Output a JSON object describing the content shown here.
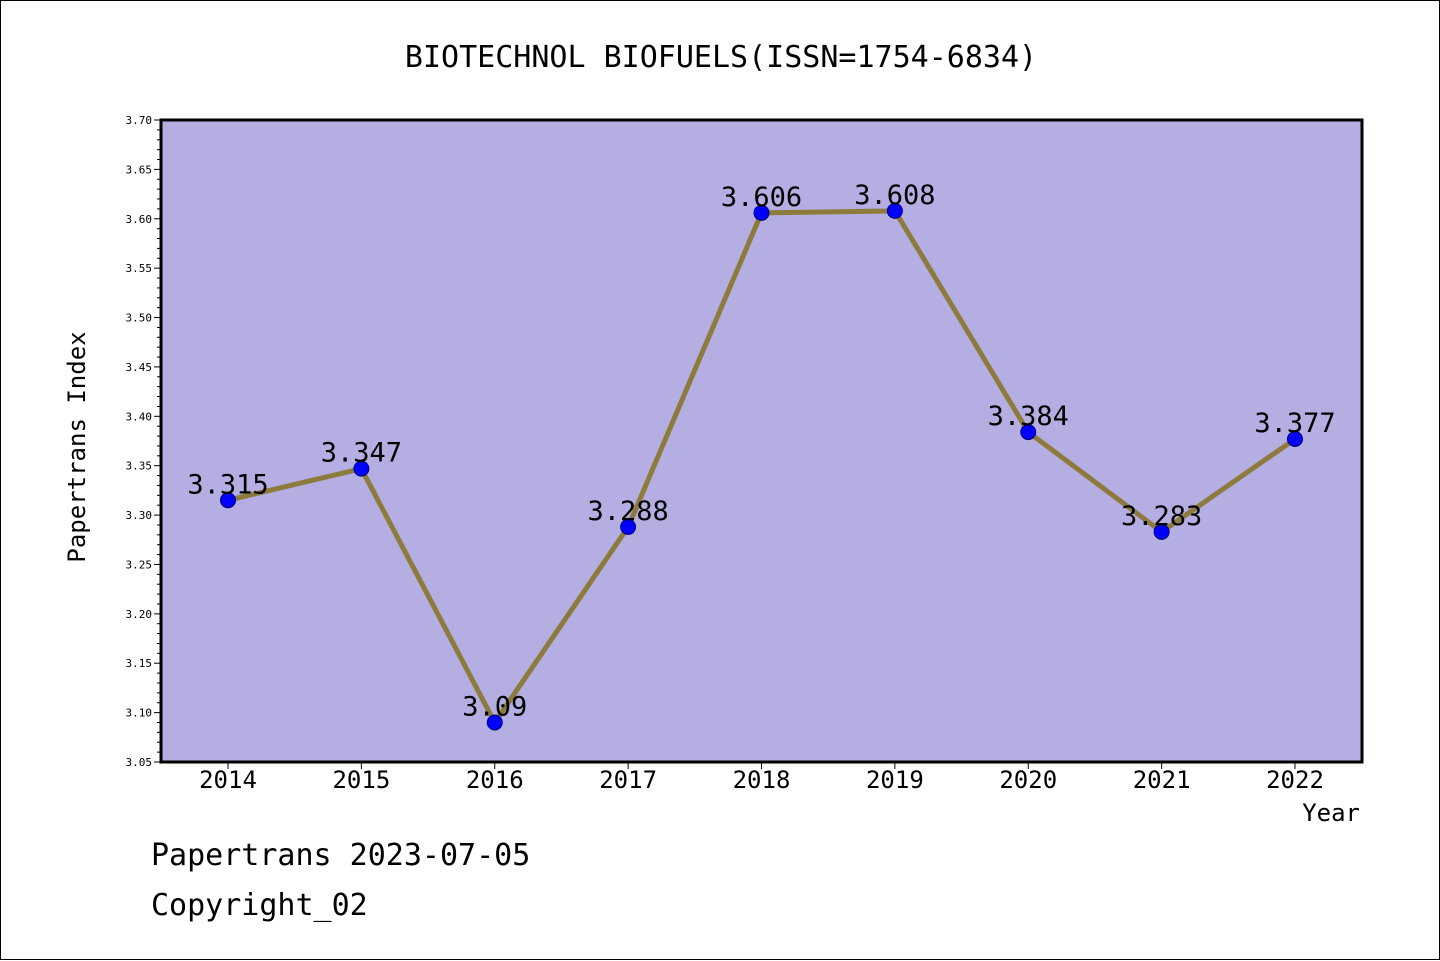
{
  "chart_data": {
    "type": "line",
    "title": "BIOTECHNOL BIOFUELS(ISSN=1754-6834)",
    "xlabel": "Year",
    "ylabel": "Papertrans Index",
    "categories": [
      "2014",
      "2015",
      "2016",
      "2017",
      "2018",
      "2019",
      "2020",
      "2021",
      "2022"
    ],
    "values": [
      3.315,
      3.347,
      3.09,
      3.288,
      3.606,
      3.608,
      3.384,
      3.283,
      3.377
    ],
    "data_labels": [
      "3.315",
      "3.347",
      "3.09",
      "3.288",
      "3.606",
      "3.608",
      "3.384",
      "3.283",
      "3.377"
    ],
    "ylim": [
      3.05,
      3.7
    ],
    "yticks": [
      "3.05",
      "3.10",
      "3.15",
      "3.20",
      "3.25",
      "3.30",
      "3.35",
      "3.40",
      "3.45",
      "3.50",
      "3.55",
      "3.60",
      "3.65",
      "3.70"
    ],
    "grid": false,
    "colors": {
      "plot_background": "#b5aee2",
      "line": "#8c7b3c",
      "marker": "#0000ff"
    }
  },
  "footer": {
    "line1": "Papertrans 2023-07-05",
    "line2": "Copyright_02"
  }
}
